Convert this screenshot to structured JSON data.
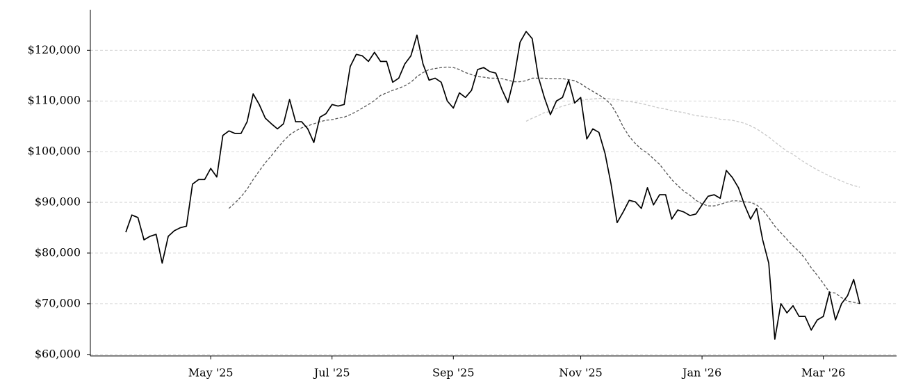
{
  "chart_data": {
    "type": "line",
    "categories": [
      null,
      null,
      null,
      null,
      null,
      null,
      null,
      null,
      null,
      null,
      null,
      null,
      null,
      null,
      "May '25",
      null,
      null,
      null,
      null,
      null,
      null,
      null,
      null,
      null,
      null,
      null,
      null,
      null,
      null,
      null,
      null,
      null,
      null,
      null,
      "Jul '25",
      null,
      null,
      null,
      null,
      null,
      null,
      null,
      null,
      null,
      null,
      null,
      null,
      null,
      null,
      null,
      null,
      null,
      null,
      null,
      "Sep '25",
      null,
      null,
      null,
      null,
      null,
      null,
      null,
      null,
      null,
      null,
      null,
      null,
      null,
      null,
      null,
      null,
      null,
      null,
      null,
      null,
      "Nov '25",
      null,
      null,
      null,
      null,
      null,
      null,
      null,
      null,
      null,
      null,
      null,
      null,
      null,
      null,
      null,
      null,
      null,
      null,
      null,
      "Jan '26",
      null,
      null,
      null,
      null,
      null,
      null,
      null,
      null,
      null,
      null,
      null,
      null,
      null,
      null,
      null,
      null,
      null,
      null,
      null,
      "Mar '26",
      null,
      null,
      null,
      null,
      null,
      null
    ],
    "series": [
      {
        "color": "#000000",
        "dash": false,
        "values": [
          84100,
          87500,
          87000,
          82600,
          83300,
          83700,
          78000,
          83300,
          84400,
          85000,
          85300,
          93600,
          94500,
          94500,
          96700,
          95000,
          103200,
          104100,
          103600,
          103600,
          105900,
          111400,
          109300,
          106600,
          105500,
          104500,
          105500,
          110300,
          105900,
          105900,
          104500,
          101800,
          106800,
          107500,
          109300,
          109000,
          109300,
          116800,
          119200,
          118900,
          117800,
          119600,
          117800,
          117800,
          113700,
          114500,
          117300,
          118900,
          123000,
          117300,
          114100,
          114500,
          113700,
          110000,
          108600,
          111600,
          110700,
          112100,
          116200,
          116600,
          115800,
          115500,
          112300,
          109700,
          114500,
          121600,
          123700,
          122300,
          114800,
          110700,
          107300,
          110000,
          110700,
          114100,
          109600,
          110700,
          102500,
          104500,
          103800,
          99700,
          93600,
          86000,
          88100,
          90400,
          90100,
          88800,
          92900,
          89500,
          91500,
          91500,
          86700,
          88500,
          88100,
          87400,
          87700,
          89500,
          91200,
          91500,
          90800,
          96300,
          94900,
          92900,
          89500,
          86700,
          88800,
          82600,
          78000,
          63000,
          70000,
          68200,
          69600,
          67500,
          67500,
          64800,
          66800,
          67500,
          72300,
          66800,
          70000,
          71600,
          74800,
          70000
        ]
      },
      {
        "color": "#555555",
        "dash": true,
        "values": [
          null,
          null,
          null,
          null,
          null,
          null,
          null,
          null,
          null,
          null,
          null,
          null,
          null,
          null,
          null,
          null,
          null,
          88800,
          89900,
          91100,
          92600,
          94500,
          96200,
          97800,
          99200,
          100700,
          102100,
          103300,
          104100,
          104700,
          105100,
          105500,
          105900,
          106200,
          106300,
          106600,
          106800,
          107300,
          107900,
          108600,
          109300,
          110100,
          111100,
          111600,
          112100,
          112500,
          113000,
          113700,
          114800,
          115600,
          116200,
          116400,
          116600,
          116700,
          116600,
          116200,
          115600,
          115200,
          114800,
          114700,
          114500,
          114500,
          114400,
          114100,
          113800,
          113800,
          114000,
          114500,
          114500,
          114500,
          114400,
          114400,
          114400,
          114200,
          114000,
          113400,
          112600,
          111900,
          111200,
          110400,
          109300,
          107300,
          104900,
          103000,
          101600,
          100500,
          99700,
          98600,
          97500,
          96000,
          94500,
          93300,
          92200,
          91400,
          90400,
          89700,
          89300,
          89300,
          89600,
          90000,
          90300,
          90300,
          90100,
          90000,
          89500,
          88500,
          87000,
          85300,
          84000,
          82700,
          81400,
          80300,
          78900,
          77100,
          75600,
          74000,
          72300,
          72100,
          71200,
          70500,
          70300,
          70000
        ]
      },
      {
        "color": "#c8c8c8",
        "dash": true,
        "values": [
          null,
          null,
          null,
          null,
          null,
          null,
          null,
          null,
          null,
          null,
          null,
          null,
          null,
          null,
          null,
          null,
          null,
          null,
          null,
          null,
          null,
          null,
          null,
          null,
          null,
          null,
          null,
          null,
          null,
          null,
          null,
          null,
          null,
          null,
          null,
          null,
          null,
          null,
          null,
          null,
          null,
          null,
          null,
          null,
          null,
          null,
          null,
          null,
          null,
          null,
          null,
          null,
          null,
          null,
          null,
          null,
          null,
          null,
          null,
          null,
          null,
          null,
          null,
          null,
          null,
          null,
          106000,
          106600,
          107100,
          107700,
          107900,
          108500,
          109000,
          109300,
          109700,
          110100,
          110300,
          110400,
          110500,
          110500,
          110400,
          110300,
          110000,
          109900,
          109700,
          109500,
          109200,
          108900,
          108600,
          108400,
          108100,
          107900,
          107700,
          107400,
          107100,
          107000,
          106800,
          106700,
          106400,
          106300,
          106200,
          105900,
          105600,
          105100,
          104500,
          103700,
          102900,
          101900,
          101000,
          100100,
          99500,
          98600,
          97800,
          97100,
          96400,
          95800,
          95200,
          94700,
          94200,
          93700,
          93300,
          93000
        ]
      }
    ],
    "ylim": [
      59700,
      128000
    ],
    "yticks": [
      {
        "value": 60000,
        "label": "$60,000"
      },
      {
        "value": 70000,
        "label": "$70,000"
      },
      {
        "value": 80000,
        "label": "$80,000"
      },
      {
        "value": 90000,
        "label": "$90,000"
      },
      {
        "value": 100000,
        "label": "$100,000"
      },
      {
        "value": 110000,
        "label": "$110,000"
      },
      {
        "value": 120000,
        "label": "$120,000"
      }
    ],
    "grid": true
  }
}
